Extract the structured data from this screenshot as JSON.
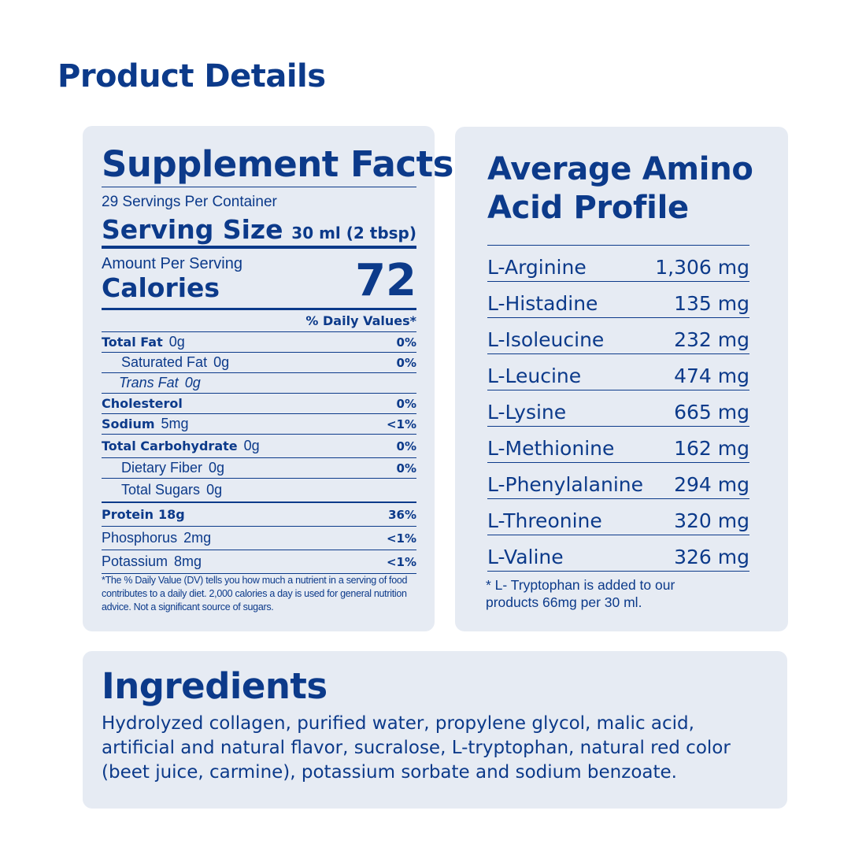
{
  "title": "Product Details",
  "supplement_facts": {
    "title": "Supplement Facts",
    "servings": "29 Servings Per Container",
    "serving_size_label": "Serving Size",
    "serving_size": "30 ml (2 tbsp)",
    "amount_label": "Amount Per Serving",
    "calories_label": "Calories",
    "calories": "72",
    "dv_header": "% Daily Values*",
    "rows": [
      {
        "name": "Total Fat",
        "amount": "0g",
        "dv": "0%"
      },
      {
        "name": "Saturated Fat",
        "amount": "0g",
        "dv": "0%"
      },
      {
        "name": "Trans Fat",
        "amount": "0g"
      },
      {
        "name": "Cholesterol",
        "dv": "0%"
      },
      {
        "name": "Sodium",
        "amount": "5mg",
        "dv": "<1%"
      },
      {
        "name": "Total Carbohydrate",
        "amount": "0g",
        "dv": "0%"
      },
      {
        "name": "Dietary Fiber",
        "amount": "0g",
        "dv": "0%"
      },
      {
        "name": "Total Sugars",
        "amount": "0g"
      },
      {
        "name": "Protein",
        "amount": "18g",
        "dv": "36%"
      },
      {
        "name": "Phosphorus",
        "amount": "2mg",
        "dv": "<1%"
      },
      {
        "name": "Potassium",
        "amount": "8mg",
        "dv": "<1%"
      }
    ],
    "footnote": "*The % Daily Value (DV) tells you how much a nutrient in a serving of food contributes to a daily diet. 2,000 calories a day is used for general nutrition advice. Not a significant source of sugars."
  },
  "amino_profile": {
    "title": "Average Amino Acid Profile",
    "rows": [
      {
        "name": "L-Arginine",
        "amount": "1,306 mg"
      },
      {
        "name": "L-Histadine",
        "amount": "135 mg"
      },
      {
        "name": "L-Isoleucine",
        "amount": "232 mg"
      },
      {
        "name": "L-Leucine",
        "amount": "474 mg"
      },
      {
        "name": "L-Lysine",
        "amount": "665 mg"
      },
      {
        "name": "L-Methionine",
        "amount": "162 mg"
      },
      {
        "name": "L-Phenylalanine",
        "amount": "294 mg"
      },
      {
        "name": "L-Threonine",
        "amount": "320 mg"
      },
      {
        "name": "L-Valine",
        "amount": "326 mg"
      }
    ],
    "footnote": "* L- Tryptophan is added to our products 66mg per 30 ml."
  },
  "ingredients": {
    "title": "Ingredients",
    "text": "Hydrolyzed collagen, purified water, propylene glycol, malic acid, artificial and natural flavor, sucralose, L-tryptophan, natural red color (beet juice, carmine), potassium sorbate and sodium benzoate."
  }
}
